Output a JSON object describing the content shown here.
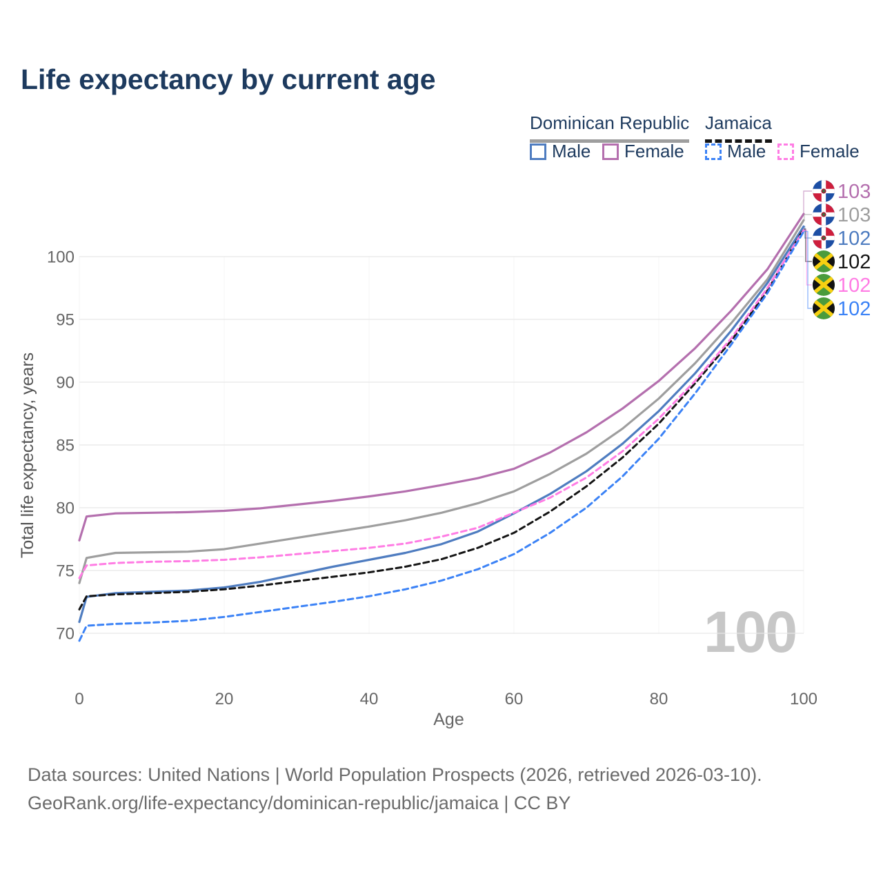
{
  "title": "Life expectancy by current age",
  "watermark": "100",
  "legend": {
    "groups": [
      {
        "label": "Dominican Republic",
        "line_style": "solid",
        "line_color": "#9e9e9e"
      },
      {
        "label": "Jamaica",
        "line_style": "dashed",
        "line_color": "#141414"
      }
    ],
    "items": [
      {
        "label": "Male",
        "color": "#4e7cc0",
        "dashed": false
      },
      {
        "label": "Female",
        "color": "#b46fae",
        "dashed": false
      },
      {
        "label": "Male",
        "color": "#3b82f6",
        "dashed": true
      },
      {
        "label": "Female",
        "color": "#ff7ce4",
        "dashed": true
      }
    ]
  },
  "chart_data": {
    "type": "line",
    "title": "Life expectancy by current age",
    "xlabel": "Age",
    "ylabel": "Total life expectancy, years",
    "xlim": [
      0,
      100
    ],
    "ylim": [
      70,
      100
    ],
    "x_ticks": [
      0,
      20,
      40,
      60,
      80,
      100
    ],
    "y_ticks": [
      70,
      75,
      80,
      85,
      90,
      95,
      100
    ],
    "grid": "horizontal",
    "legend_position": "top-right",
    "ages": [
      0,
      1,
      5,
      10,
      15,
      20,
      25,
      30,
      35,
      40,
      45,
      50,
      55,
      60,
      65,
      70,
      75,
      80,
      85,
      90,
      95,
      100
    ],
    "series": [
      {
        "name": "Dominican Republic Female",
        "country": "Dominican Republic",
        "sex": "Female",
        "color": "#b46fae",
        "dashed": false,
        "end_label": "103",
        "flag": "dominican-republic",
        "values": [
          77.4,
          79.3,
          79.55,
          79.6,
          79.65,
          79.75,
          79.95,
          80.25,
          80.55,
          80.9,
          81.3,
          81.8,
          82.35,
          83.1,
          84.4,
          86.0,
          87.9,
          90.1,
          92.7,
          95.7,
          99.0,
          103.4
        ]
      },
      {
        "name": "Dominican Republic Both sexes",
        "country": "Dominican Republic",
        "sex": "Both",
        "color": "#9e9e9e",
        "dashed": false,
        "end_label": "103",
        "flag": "dominican-republic",
        "values": [
          74.0,
          76.0,
          76.4,
          76.45,
          76.5,
          76.7,
          77.15,
          77.6,
          78.05,
          78.5,
          79.0,
          79.6,
          80.35,
          81.3,
          82.7,
          84.3,
          86.3,
          88.7,
          91.5,
          94.7,
          98.2,
          102.9
        ]
      },
      {
        "name": "Dominican Republic Male",
        "country": "Dominican Republic",
        "sex": "Male",
        "color": "#4e7cc0",
        "dashed": false,
        "end_label": "102",
        "flag": "dominican-republic",
        "values": [
          70.9,
          72.9,
          73.2,
          73.3,
          73.4,
          73.65,
          74.1,
          74.7,
          75.3,
          75.85,
          76.4,
          77.1,
          78.1,
          79.55,
          81.1,
          82.9,
          85.1,
          87.7,
          90.7,
          94.1,
          97.9,
          102.4
        ]
      },
      {
        "name": "Jamaica Both sexes",
        "country": "Jamaica",
        "sex": "Both",
        "color": "#141414",
        "dashed": true,
        "end_label": "102",
        "flag": "jamaica",
        "values": [
          71.9,
          72.95,
          73.1,
          73.2,
          73.3,
          73.5,
          73.8,
          74.15,
          74.5,
          74.85,
          75.3,
          75.9,
          76.8,
          78.0,
          79.7,
          81.7,
          84.0,
          86.7,
          89.9,
          93.3,
          97.3,
          102.2
        ]
      },
      {
        "name": "Jamaica Female",
        "country": "Jamaica",
        "sex": "Female",
        "color": "#ff7ce4",
        "dashed": true,
        "end_label": "102",
        "flag": "jamaica",
        "values": [
          74.4,
          75.4,
          75.6,
          75.7,
          75.75,
          75.85,
          76.05,
          76.3,
          76.55,
          76.8,
          77.15,
          77.7,
          78.4,
          79.6,
          80.8,
          82.4,
          84.5,
          87.1,
          90.1,
          93.5,
          97.5,
          102.1
        ]
      },
      {
        "name": "Jamaica Male",
        "country": "Jamaica",
        "sex": "Male",
        "color": "#3b82f6",
        "dashed": true,
        "end_label": "102",
        "flag": "jamaica",
        "values": [
          69.4,
          70.6,
          70.75,
          70.85,
          71.0,
          71.3,
          71.7,
          72.1,
          72.5,
          72.95,
          73.5,
          74.2,
          75.1,
          76.3,
          78.0,
          80.0,
          82.5,
          85.5,
          89.1,
          93.0,
          97.1,
          102.0
        ]
      }
    ]
  },
  "footer": {
    "line1": "Data sources: United Nations | World Population Prospects (2026, retrieved 2026-03-10).",
    "line2": "GeoRank.org/life-expectancy/dominican-republic/jamaica | CC BY"
  }
}
